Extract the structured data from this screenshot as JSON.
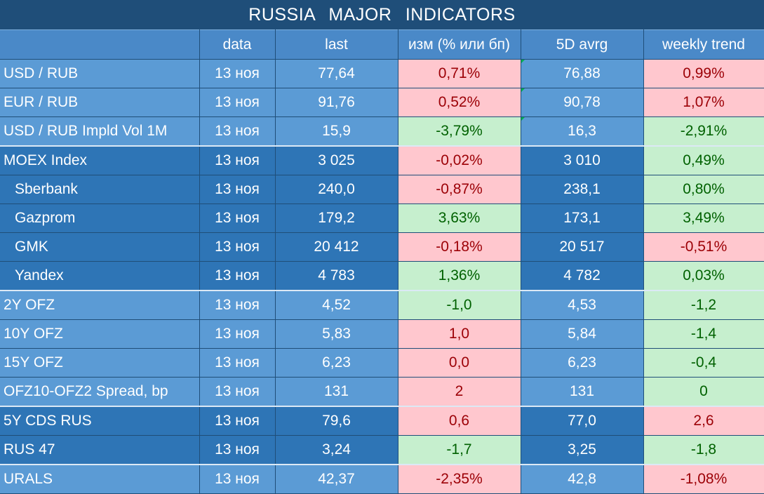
{
  "title": "RUSSIA   MAJOR   INDICATORS",
  "colors": {
    "header_bg": "#1f4e79",
    "row_light": "#5b9bd5",
    "row_dark": "#2e75b6",
    "positive_bg": "#ffc7ce",
    "positive_text": "#9c0006",
    "negative_bg": "#c6efce",
    "negative_text": "#006100"
  },
  "columns": [
    "",
    "data",
    "last",
    "изм (% или бп)",
    "5D avrg",
    "weekly trend"
  ],
  "rows": [
    {
      "name": "USD / RUB",
      "date": "13 ноя",
      "last": "77,64",
      "change": "0,71%",
      "avg5d": "76,88",
      "trend": "0,99%"
    },
    {
      "name": "EUR / RUB",
      "date": "13 ноя",
      "last": "91,76",
      "change": "0,52%",
      "avg5d": "90,78",
      "trend": "1,07%"
    },
    {
      "name": "USD / RUB Impld Vol 1M",
      "date": "13 ноя",
      "last": "15,9",
      "change": "-3,79%",
      "avg5d": "16,3",
      "trend": "-2,91%"
    },
    {
      "name": "MOEX Index",
      "date": "13 ноя",
      "last": "3 025",
      "change": "-0,02%",
      "avg5d": "3 010",
      "trend": "0,49%"
    },
    {
      "name": "Sberbank",
      "date": "13 ноя",
      "last": "240,0",
      "change": "-0,87%",
      "avg5d": "238,1",
      "trend": "0,80%"
    },
    {
      "name": "Gazprom",
      "date": "13 ноя",
      "last": "179,2",
      "change": "3,63%",
      "avg5d": "173,1",
      "trend": "3,49%"
    },
    {
      "name": "GMK",
      "date": "13 ноя",
      "last": "20 412",
      "change": "-0,18%",
      "avg5d": "20 517",
      "trend": "-0,51%"
    },
    {
      "name": "Yandex",
      "date": "13 ноя",
      "last": "4 783",
      "change": "1,36%",
      "avg5d": "4 782",
      "trend": "0,03%"
    },
    {
      "name": "2Y OFZ",
      "date": "13 ноя",
      "last": "4,52",
      "change": "-1,0",
      "avg5d": "4,53",
      "trend": "-1,2"
    },
    {
      "name": "10Y OFZ",
      "date": "13 ноя",
      "last": "5,83",
      "change": "1,0",
      "avg5d": "5,84",
      "trend": "-1,4"
    },
    {
      "name": "15Y OFZ",
      "date": "13 ноя",
      "last": "6,23",
      "change": "0,0",
      "avg5d": "6,23",
      "trend": "-0,4"
    },
    {
      "name": "OFZ10-OFZ2 Spread, bp",
      "date": "13 ноя",
      "last": "131",
      "change": "2",
      "avg5d": "131",
      "trend": "0"
    },
    {
      "name": "5Y CDS RUS",
      "date": "13 ноя",
      "last": "79,6",
      "change": "0,6",
      "avg5d": "77,0",
      "trend": "2,6"
    },
    {
      "name": "RUS 47",
      "date": "13 ноя",
      "last": "3,24",
      "change": "-1,7",
      "avg5d": "3,25",
      "trend": "-1,8"
    },
    {
      "name": "URALS",
      "date": "13 ноя",
      "last": "42,37",
      "change": "-2,35%",
      "avg5d": "42,8",
      "trend": "-1,08%"
    }
  ]
}
